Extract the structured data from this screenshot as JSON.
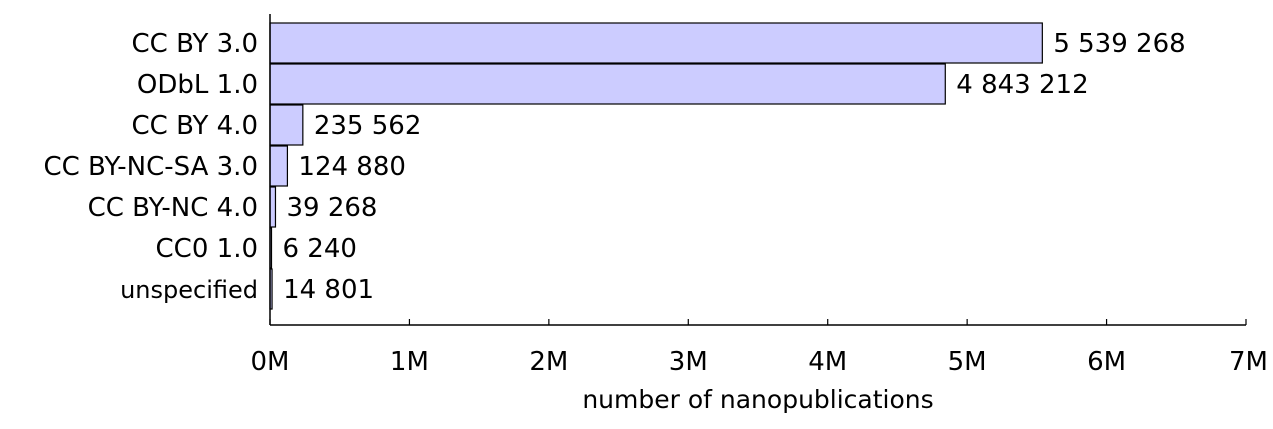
{
  "chart_data": {
    "type": "bar",
    "orientation": "horizontal",
    "categories": [
      "CC BY 3.0",
      "ODbL 1.0",
      "CC BY 4.0",
      "CC BY-NC-SA 3.0",
      "CC BY-NC 4.0",
      "CC0 1.0",
      "unspecified"
    ],
    "values": [
      5539268,
      4843212,
      235562,
      124880,
      39268,
      6240,
      14801
    ],
    "value_labels": [
      "5 539 268",
      "4 843 212",
      "235 562",
      "124 880",
      "39 268",
      "6 240",
      "14 801"
    ],
    "xlabel": "number of nanopublications",
    "ylabel": "",
    "xlim": [
      0,
      7000000
    ],
    "xticks": [
      0,
      1000000,
      2000000,
      3000000,
      4000000,
      5000000,
      6000000,
      7000000
    ],
    "xtick_labels": [
      "0M",
      "1M",
      "2M",
      "3M",
      "4M",
      "5M",
      "6M",
      "7M"
    ],
    "grid": false,
    "bar_color": "#ccccff",
    "bar_edge_color": "#000000"
  }
}
